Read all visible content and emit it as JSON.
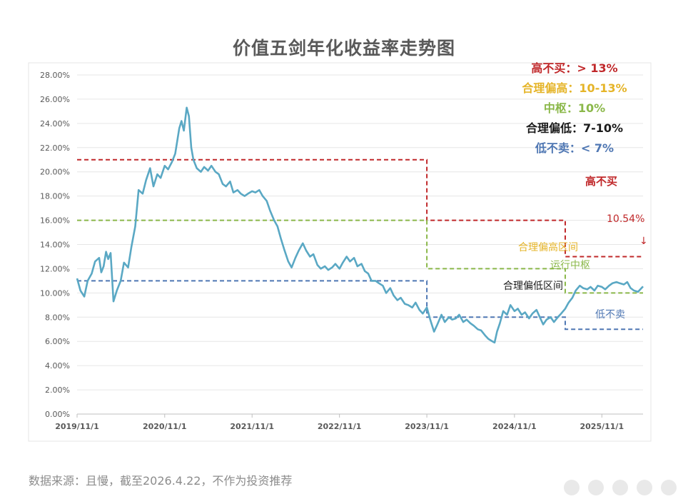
{
  "title": "价值五剑年化收益率走势图",
  "legend": [
    {
      "label": "高不买：",
      "value": "> 13%",
      "color": "#c0282a"
    },
    {
      "label": "合理偏高：",
      "value": "10-13%",
      "color": "#e5b428"
    },
    {
      "label": "中枢：",
      "value": "10%",
      "color": "#8bb84a"
    },
    {
      "label": "合理偏低：",
      "value": "7-10%",
      "color": "#1a1a1a"
    },
    {
      "label": "低不卖：",
      "value": "< 7%",
      "color": "#4f77b3"
    }
  ],
  "annotations": {
    "high_no_buy": "高不买",
    "latest_value": "10.54%",
    "down_arrow": "↓",
    "reasonable_high_zone": "合理偏高区间",
    "running_center": "运行中枢",
    "reasonable_low_zone": "合理偏低区间",
    "low_no_sell": "低不卖"
  },
  "source": "数据来源：且慢，截至2026.4.22，不作为投资推荐",
  "chart_data": {
    "type": "line",
    "title": "价值五剑年化收益率走势图",
    "xlabel": "",
    "ylabel": "",
    "x_ticks": [
      "2019/11/1",
      "2020/11/1",
      "2021/11/1",
      "2022/11/1",
      "2023/11/1",
      "2024/11/1",
      "2025/11/1"
    ],
    "y_ticks": [
      "0.00%",
      "2.00%",
      "4.00%",
      "6.00%",
      "8.00%",
      "10.00%",
      "12.00%",
      "14.00%",
      "16.00%",
      "18.00%",
      "20.00%",
      "22.00%",
      "24.00%",
      "26.00%",
      "28.00%"
    ],
    "ylim": [
      0,
      28
    ],
    "xlim": [
      "2019-11-01",
      "2026-04-22"
    ],
    "grid": true,
    "series": [
      {
        "color": "#5aa8c4",
        "points": [
          [
            "2019-11-01",
            11.2
          ],
          [
            "2019-11-15",
            10.2
          ],
          [
            "2019-12-01",
            9.7
          ],
          [
            "2019-12-15",
            11.0
          ],
          [
            "2020-01-01",
            11.6
          ],
          [
            "2020-01-15",
            12.6
          ],
          [
            "2020-02-01",
            12.9
          ],
          [
            "2020-02-10",
            11.7
          ],
          [
            "2020-02-20",
            12.2
          ],
          [
            "2020-03-01",
            13.4
          ],
          [
            "2020-03-10",
            12.8
          ],
          [
            "2020-03-20",
            13.3
          ],
          [
            "2020-04-01",
            9.3
          ],
          [
            "2020-04-15",
            10.2
          ],
          [
            "2020-05-01",
            11.0
          ],
          [
            "2020-05-15",
            12.5
          ],
          [
            "2020-06-01",
            12.1
          ],
          [
            "2020-06-15",
            13.8
          ],
          [
            "2020-07-01",
            15.5
          ],
          [
            "2020-07-15",
            18.5
          ],
          [
            "2020-08-01",
            18.2
          ],
          [
            "2020-08-15",
            19.3
          ],
          [
            "2020-09-01",
            20.3
          ],
          [
            "2020-09-15",
            18.8
          ],
          [
            "2020-10-01",
            19.8
          ],
          [
            "2020-10-15",
            19.5
          ],
          [
            "2020-11-01",
            20.5
          ],
          [
            "2020-11-15",
            20.2
          ],
          [
            "2020-12-01",
            20.8
          ],
          [
            "2020-12-15",
            21.5
          ],
          [
            "2021-01-01",
            23.6
          ],
          [
            "2021-01-10",
            24.2
          ],
          [
            "2021-01-20",
            23.4
          ],
          [
            "2021-02-01",
            25.3
          ],
          [
            "2021-02-10",
            24.6
          ],
          [
            "2021-02-20",
            22.0
          ],
          [
            "2021-03-01",
            21.0
          ],
          [
            "2021-03-15",
            20.3
          ],
          [
            "2021-04-01",
            20.0
          ],
          [
            "2021-04-15",
            20.4
          ],
          [
            "2021-05-01",
            20.1
          ],
          [
            "2021-05-15",
            20.5
          ],
          [
            "2021-06-01",
            20.0
          ],
          [
            "2021-06-15",
            19.8
          ],
          [
            "2021-07-01",
            19.0
          ],
          [
            "2021-07-15",
            18.8
          ],
          [
            "2021-08-01",
            19.2
          ],
          [
            "2021-08-15",
            18.3
          ],
          [
            "2021-09-01",
            18.5
          ],
          [
            "2021-09-15",
            18.2
          ],
          [
            "2021-10-01",
            18.0
          ],
          [
            "2021-10-15",
            18.2
          ],
          [
            "2021-11-01",
            18.4
          ],
          [
            "2021-11-15",
            18.3
          ],
          [
            "2021-12-01",
            18.5
          ],
          [
            "2021-12-15",
            18.0
          ],
          [
            "2022-01-01",
            17.6
          ],
          [
            "2022-01-15",
            16.8
          ],
          [
            "2022-02-01",
            16.0
          ],
          [
            "2022-02-15",
            15.5
          ],
          [
            "2022-03-01",
            14.5
          ],
          [
            "2022-03-15",
            13.6
          ],
          [
            "2022-04-01",
            12.6
          ],
          [
            "2022-04-15",
            12.1
          ],
          [
            "2022-05-01",
            12.9
          ],
          [
            "2022-05-15",
            13.5
          ],
          [
            "2022-06-01",
            14.1
          ],
          [
            "2022-06-15",
            13.5
          ],
          [
            "2022-07-01",
            13.0
          ],
          [
            "2022-07-15",
            13.2
          ],
          [
            "2022-08-01",
            12.3
          ],
          [
            "2022-08-15",
            12.0
          ],
          [
            "2022-09-01",
            12.2
          ],
          [
            "2022-09-15",
            11.9
          ],
          [
            "2022-10-01",
            12.1
          ],
          [
            "2022-10-15",
            12.4
          ],
          [
            "2022-11-01",
            12.0
          ],
          [
            "2022-11-15",
            12.5
          ],
          [
            "2022-12-01",
            13.0
          ],
          [
            "2022-12-15",
            12.6
          ],
          [
            "2023-01-01",
            12.9
          ],
          [
            "2023-01-15",
            12.2
          ],
          [
            "2023-02-01",
            12.4
          ],
          [
            "2023-02-15",
            11.8
          ],
          [
            "2023-03-01",
            11.6
          ],
          [
            "2023-03-15",
            11.0
          ],
          [
            "2023-04-01",
            11.0
          ],
          [
            "2023-04-15",
            10.8
          ],
          [
            "2023-05-01",
            10.6
          ],
          [
            "2023-05-15",
            10.0
          ],
          [
            "2023-06-01",
            10.4
          ],
          [
            "2023-06-15",
            9.8
          ],
          [
            "2023-07-01",
            9.4
          ],
          [
            "2023-07-15",
            9.6
          ],
          [
            "2023-08-01",
            9.1
          ],
          [
            "2023-08-15",
            9.0
          ],
          [
            "2023-09-01",
            8.8
          ],
          [
            "2023-09-15",
            9.2
          ],
          [
            "2023-10-01",
            8.6
          ],
          [
            "2023-10-15",
            8.3
          ],
          [
            "2023-11-01",
            8.8
          ],
          [
            "2023-11-15",
            7.8
          ],
          [
            "2023-12-01",
            6.8
          ],
          [
            "2023-12-15",
            7.4
          ],
          [
            "2024-01-01",
            8.2
          ],
          [
            "2024-01-15",
            7.6
          ],
          [
            "2024-02-01",
            8.0
          ],
          [
            "2024-02-15",
            7.8
          ],
          [
            "2024-03-01",
            7.9
          ],
          [
            "2024-03-15",
            8.2
          ],
          [
            "2024-04-01",
            7.6
          ],
          [
            "2024-04-15",
            7.8
          ],
          [
            "2024-05-01",
            7.5
          ],
          [
            "2024-05-15",
            7.3
          ],
          [
            "2024-06-01",
            7.0
          ],
          [
            "2024-06-15",
            6.9
          ],
          [
            "2024-07-01",
            6.5
          ],
          [
            "2024-07-15",
            6.2
          ],
          [
            "2024-08-01",
            6.0
          ],
          [
            "2024-08-10",
            5.9
          ],
          [
            "2024-08-20",
            6.8
          ],
          [
            "2024-09-01",
            7.5
          ],
          [
            "2024-09-15",
            8.5
          ],
          [
            "2024-10-01",
            8.2
          ],
          [
            "2024-10-15",
            9.0
          ],
          [
            "2024-11-01",
            8.5
          ],
          [
            "2024-11-15",
            8.7
          ],
          [
            "2024-12-01",
            8.2
          ],
          [
            "2024-12-15",
            8.4
          ],
          [
            "2025-01-01",
            7.9
          ],
          [
            "2025-01-15",
            8.3
          ],
          [
            "2025-02-01",
            8.6
          ],
          [
            "2025-02-15",
            8.0
          ],
          [
            "2025-03-01",
            7.4
          ],
          [
            "2025-03-15",
            7.8
          ],
          [
            "2025-04-01",
            8.0
          ],
          [
            "2025-04-15",
            7.6
          ],
          [
            "2025-05-01",
            8.0
          ],
          [
            "2025-05-15",
            8.3
          ],
          [
            "2025-06-01",
            8.7
          ],
          [
            "2025-06-15",
            9.2
          ],
          [
            "2025-07-01",
            9.6
          ],
          [
            "2025-07-15",
            10.2
          ],
          [
            "2025-08-01",
            10.6
          ],
          [
            "2025-08-15",
            10.4
          ],
          [
            "2025-09-01",
            10.3
          ],
          [
            "2025-09-15",
            10.5
          ],
          [
            "2025-10-01",
            10.2
          ],
          [
            "2025-10-15",
            10.6
          ],
          [
            "2025-11-01",
            10.5
          ],
          [
            "2025-11-15",
            10.3
          ],
          [
            "2025-12-01",
            10.6
          ],
          [
            "2025-12-15",
            10.8
          ],
          [
            "2026-01-01",
            10.9
          ],
          [
            "2026-01-15",
            10.8
          ],
          [
            "2026-02-01",
            10.7
          ],
          [
            "2026-02-15",
            10.9
          ],
          [
            "2026-03-01",
            10.4
          ],
          [
            "2026-03-15",
            10.2
          ],
          [
            "2026-04-01",
            10.1
          ],
          [
            "2026-04-22",
            10.54
          ]
        ]
      }
    ],
    "bands": [
      {
        "name": "高不买",
        "color": "#c0282a",
        "steps": [
          [
            "2019-11-01",
            21
          ],
          [
            "2023-11-01",
            16
          ],
          [
            "2025-06-01",
            13
          ],
          [
            "2026-04-22",
            13
          ]
        ]
      },
      {
        "name": "中枢",
        "color": "#8bb84a",
        "steps": [
          [
            "2019-11-01",
            16
          ],
          [
            "2023-11-01",
            12
          ],
          [
            "2025-06-01",
            10
          ],
          [
            "2026-04-22",
            10
          ]
        ]
      },
      {
        "name": "低不卖",
        "color": "#4f77b3",
        "steps": [
          [
            "2019-11-01",
            11
          ],
          [
            "2023-11-01",
            8
          ],
          [
            "2025-06-01",
            7
          ],
          [
            "2026-04-22",
            7
          ]
        ]
      }
    ]
  }
}
